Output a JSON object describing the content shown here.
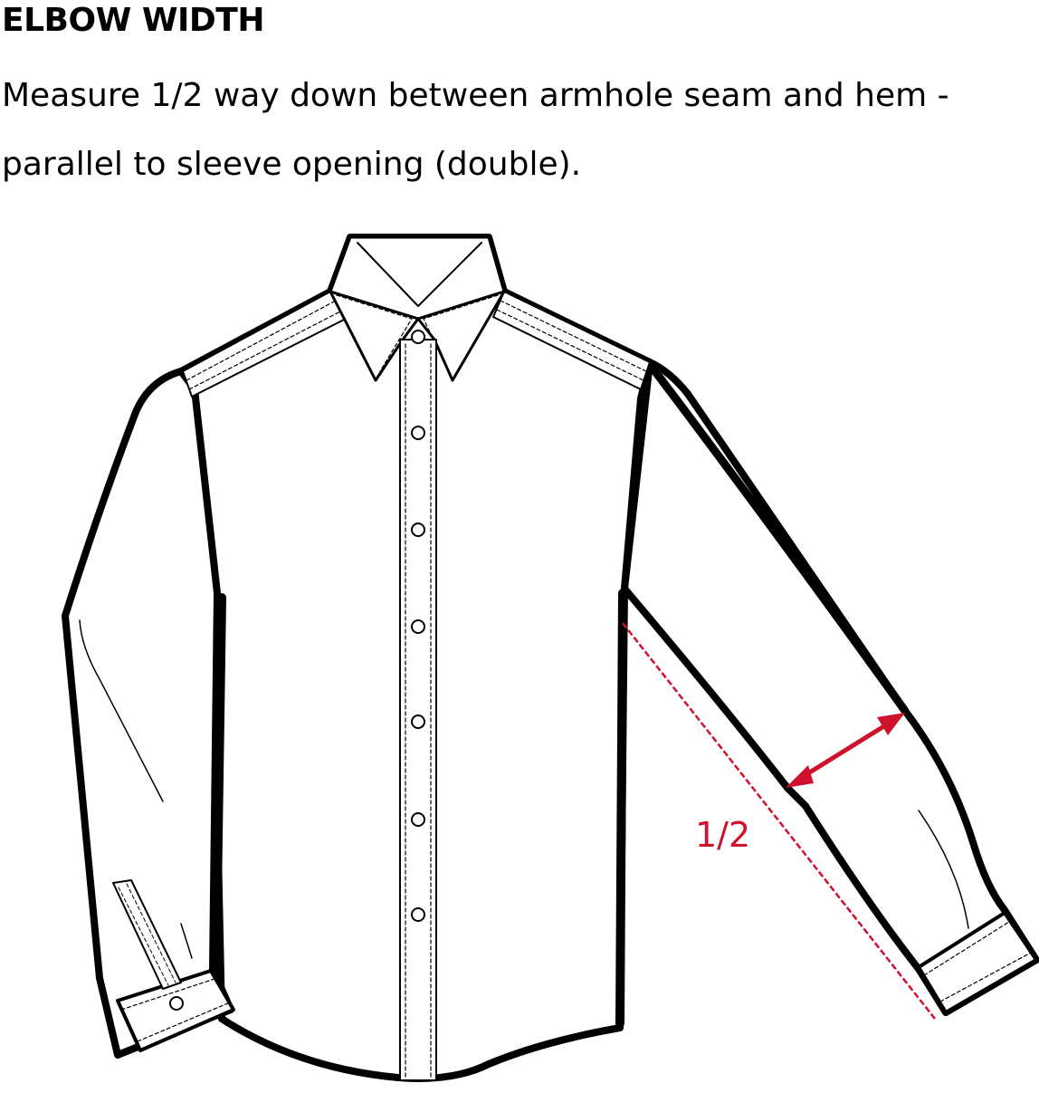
{
  "heading": "ELBOW WIDTH",
  "instructions": "Measure 1/2 way down between armhole seam and hem - parallel to sleeve opening (double).",
  "diagram": {
    "annotation_label": "1/2",
    "colors": {
      "outline": "#000000",
      "measure": "#d0112b"
    }
  }
}
